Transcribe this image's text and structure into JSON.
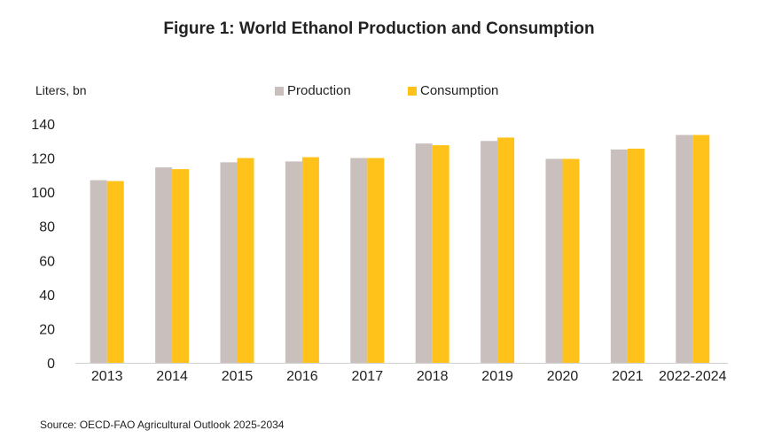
{
  "chart_data": {
    "type": "bar",
    "title": "Figure 1: World Ethanol Production and Consumption",
    "ylabel": "Liters, bn",
    "xlabel": "",
    "categories": [
      "2013",
      "2014",
      "2015",
      "2016",
      "2017",
      "2018",
      "2019",
      "2020",
      "2021",
      "2022-2024"
    ],
    "series": [
      {
        "name": "Production",
        "color": "#C9BFBD",
        "values": [
          107,
          114.5,
          117.5,
          118,
          120,
          128.5,
          130,
          119.5,
          125,
          133.5
        ]
      },
      {
        "name": "Consumption",
        "color": "#FFC21A",
        "values": [
          106.5,
          113.5,
          120,
          120.5,
          120,
          127.5,
          132,
          119.5,
          125.5,
          133.5
        ]
      }
    ],
    "ylim": [
      0,
      140
    ],
    "yticks": [
      0,
      20,
      40,
      60,
      80,
      100,
      120,
      140
    ],
    "grid": false,
    "legend": "top-center"
  },
  "source": "Source: OECD-FAO Agricultural Outlook 2025-2034"
}
